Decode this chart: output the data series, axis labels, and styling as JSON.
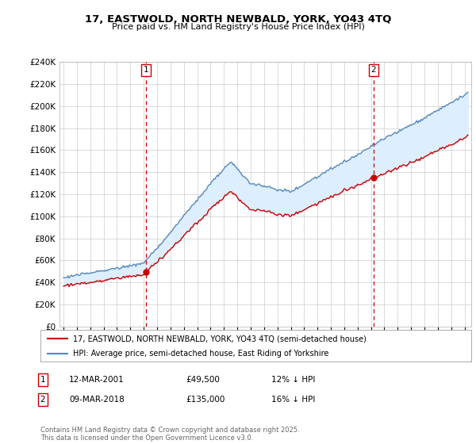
{
  "title1": "17, EASTWOLD, NORTH NEWBALD, YORK, YO43 4TQ",
  "title2": "Price paid vs. HM Land Registry's House Price Index (HPI)",
  "legend1": "17, EASTWOLD, NORTH NEWBALD, YORK, YO43 4TQ (semi-detached house)",
  "legend2": "HPI: Average price, semi-detached house, East Riding of Yorkshire",
  "annotation1_label": "1",
  "annotation1_date": "12-MAR-2001",
  "annotation1_price": "£49,500",
  "annotation1_hpi": "12% ↓ HPI",
  "annotation2_label": "2",
  "annotation2_date": "09-MAR-2018",
  "annotation2_price": "£135,000",
  "annotation2_hpi": "16% ↓ HPI",
  "footer": "Contains HM Land Registry data © Crown copyright and database right 2025.\nThis data is licensed under the Open Government Licence v3.0.",
  "sale1_year": 2001.19,
  "sale1_price": 49500,
  "sale2_year": 2018.19,
  "sale2_price": 135000,
  "ylim": [
    0,
    240000
  ],
  "xlim_start": 1994.7,
  "xlim_end": 2025.5,
  "property_color": "#cc0000",
  "hpi_color": "#5588bb",
  "fill_color": "#ddeeff",
  "vline_color": "#cc0000",
  "grid_color": "#cccccc",
  "background_color": "#ffffff"
}
